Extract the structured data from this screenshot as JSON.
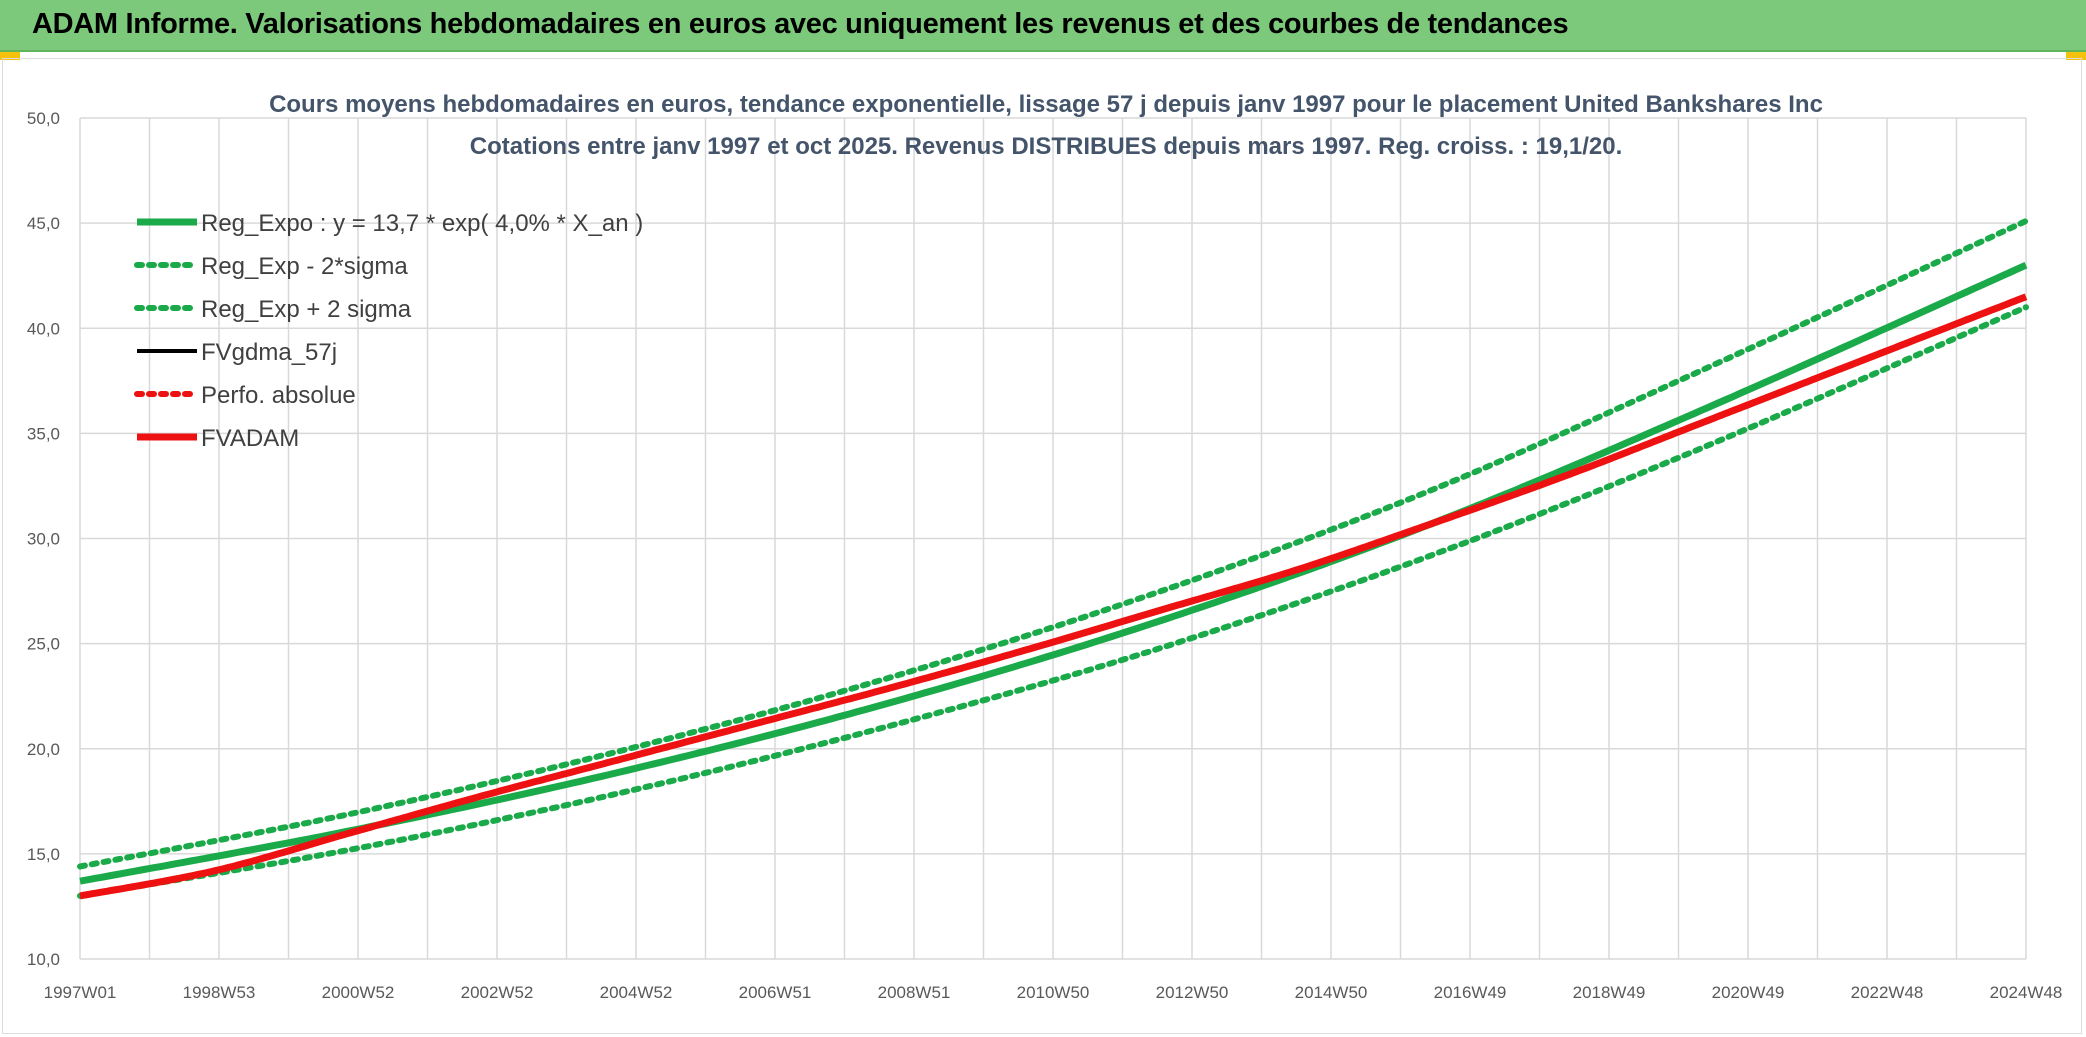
{
  "banner": {
    "title": "ADAM Informe. Valorisations hebdomadaires en euros avec uniquement les revenus et des courbes de tendances"
  },
  "colors": {
    "banner_bg": "#7dc97b",
    "reg_green": "#1aaa4a",
    "fvadam_red": "#ee1111",
    "grid": "#d9d9d9"
  },
  "chart_data": {
    "type": "line",
    "title_lines": [
      "Cours moyens hebdomadaires en euros, tendance exponentielle, lissage 57 j depuis janv 1997 pour le placement United Bankshares Inc",
      "Cotations entre janv 1997 et oct 2025. Revenus DISTRIBUES depuis mars 1997. Reg. croiss. : 19,1/20."
    ],
    "x_tick_labels": [
      "1997W01",
      "1998W53",
      "2000W52",
      "2002W52",
      "2004W52",
      "2006W51",
      "2008W51",
      "2010W50",
      "2012W50",
      "2014W50",
      "2016W49",
      "2018W49",
      "2020W49",
      "2022W48",
      "2024W48"
    ],
    "x_range_years": [
      1997.0,
      2025.8
    ],
    "ylim": [
      10,
      50
    ],
    "y_ticks": [
      "10,0",
      "15,0",
      "20,0",
      "25,0",
      "30,0",
      "35,0",
      "40,0",
      "45,0",
      "50,0"
    ],
    "grid": true,
    "legend_position": "top-left",
    "series": [
      {
        "name": "Reg_Expo : y = 13,7 * exp( 4,0% *  X_an )",
        "style": "solid-thick",
        "color": "#1aaa4a",
        "points": [
          [
            1997.0,
            13.7
          ],
          [
            2001.0,
            16.1
          ],
          [
            2005.0,
            18.9
          ],
          [
            2009.0,
            22.2
          ],
          [
            2013.0,
            26.1
          ],
          [
            2017.0,
            30.7
          ],
          [
            2021.0,
            36.1
          ],
          [
            2025.8,
            43.0
          ]
        ]
      },
      {
        "name": "Reg_Exp - 2*sigma",
        "style": "dotted",
        "color": "#1aaa4a",
        "points": [
          [
            1997.0,
            13.0
          ],
          [
            2001.0,
            15.2
          ],
          [
            2005.0,
            17.9
          ],
          [
            2009.0,
            21.1
          ],
          [
            2013.0,
            24.8
          ],
          [
            2017.0,
            29.2
          ],
          [
            2021.0,
            34.3
          ],
          [
            2025.8,
            41.0
          ]
        ]
      },
      {
        "name": "Reg_Exp + 2 sigma",
        "style": "dotted",
        "color": "#1aaa4a",
        "points": [
          [
            1997.0,
            14.4
          ],
          [
            2001.0,
            16.9
          ],
          [
            2005.0,
            19.9
          ],
          [
            2009.0,
            23.4
          ],
          [
            2013.0,
            27.5
          ],
          [
            2017.0,
            32.3
          ],
          [
            2021.0,
            38.0
          ],
          [
            2025.8,
            45.1
          ]
        ]
      },
      {
        "name": "FVgdma_57j",
        "style": "solid",
        "color": "#000000",
        "points": []
      },
      {
        "name": "Perfo. absolue",
        "style": "dotted",
        "color": "#ee1111",
        "points": []
      },
      {
        "name": "FVADAM",
        "style": "solid-thick",
        "color": "#ee1111",
        "points": [
          [
            1997.0,
            13.0
          ],
          [
            1999.0,
            14.2
          ],
          [
            2001.0,
            16.0
          ],
          [
            2003.0,
            17.8
          ],
          [
            2005.0,
            19.5
          ],
          [
            2007.0,
            21.2
          ],
          [
            2009.0,
            22.9
          ],
          [
            2011.0,
            24.7
          ],
          [
            2013.0,
            26.6
          ],
          [
            2015.0,
            28.5
          ],
          [
            2017.0,
            30.7
          ],
          [
            2019.0,
            33.0
          ],
          [
            2021.0,
            35.5
          ],
          [
            2023.0,
            38.0
          ],
          [
            2025.8,
            41.5
          ]
        ]
      }
    ]
  }
}
